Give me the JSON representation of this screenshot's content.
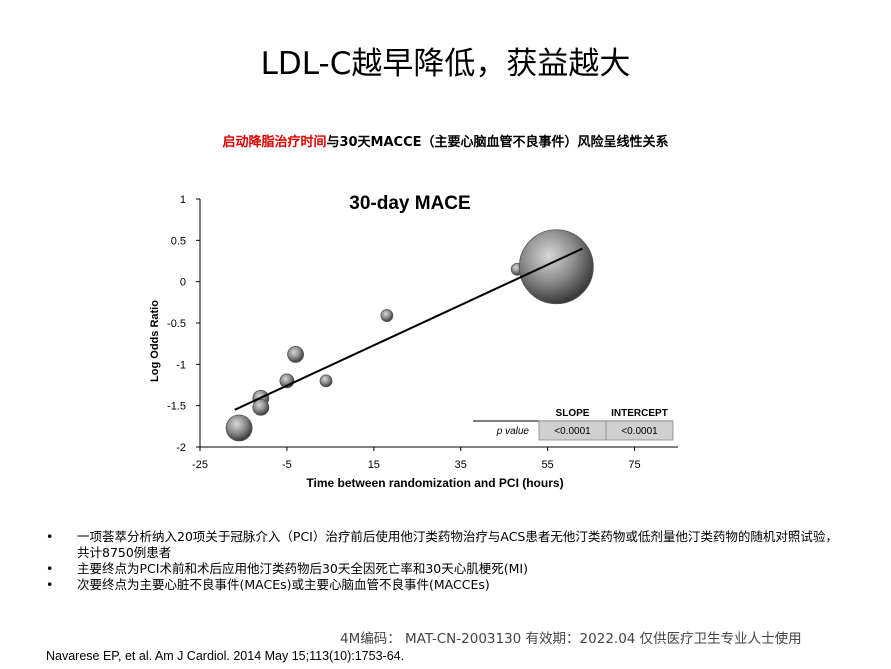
{
  "slide": {
    "title": "LDL-C越早降低，获益越大",
    "subtitle_red": "启动降脂治疗时间",
    "subtitle_rest": "与30天MACCE（主要心脑血管不良事件）风险呈线性关系"
  },
  "chart_data": {
    "type": "scatter",
    "title": "30-day MACE",
    "xlabel": "Time between randomization and PCI (hours)",
    "ylabel": "Log Odds Ratio",
    "xlim": [
      -25,
      85
    ],
    "ylim": [
      -2,
      1
    ],
    "xticks": [
      "-25",
      "-5",
      "15",
      "35",
      "55",
      "75"
    ],
    "yticks": [
      "1",
      "0.5",
      "0",
      "-0.5",
      "-1",
      "-1.5",
      "-2"
    ],
    "points": [
      {
        "x": -16,
        "y": -1.77,
        "size": 13
      },
      {
        "x": -11,
        "y": -1.41,
        "size": 8
      },
      {
        "x": -11,
        "y": -1.52,
        "size": 8
      },
      {
        "x": -3,
        "y": -0.88,
        "size": 8
      },
      {
        "x": -5,
        "y": -1.2,
        "size": 7
      },
      {
        "x": 4,
        "y": -1.2,
        "size": 6
      },
      {
        "x": 18,
        "y": -0.41,
        "size": 6
      },
      {
        "x": 48,
        "y": 0.15,
        "size": 6
      },
      {
        "x": 57,
        "y": 0.18,
        "size": 37
      }
    ],
    "regression_line": {
      "x": [
        -17,
        63
      ],
      "y": [
        -1.55,
        0.4
      ]
    },
    "table": {
      "headers": [
        "",
        "SLOPE",
        "INTERCEPT"
      ],
      "row_label": "p value",
      "row_values": [
        "<0.0001",
        "<0.0001"
      ]
    },
    "grid": false,
    "legend": "none"
  },
  "bullets": [
    "一项荟萃分析纳入20项关于冠脉介入（PCI）治疗前后使用他汀类药物治疗与ACS患者无他汀类药物或低剂量他汀类药物的随机对照试验，共计8750例患者",
    "主要终点为PCI术前和术后应用他汀类药物后30天全因死亡率和30天心肌梗死(MI)",
    "次要终点为主要心脏不良事件(MACEs)或主要心脑血管不良事件(MACCEs)"
  ],
  "bullet_symbol": "•",
  "footer": "4M编码：  MAT-CN-2003130   有效期：2022.04   仅供医疗卫生专业人士使用",
  "citation": "Navarese EP, et al. Am J Cardiol. 2014 May 15;113(10):1753-64."
}
